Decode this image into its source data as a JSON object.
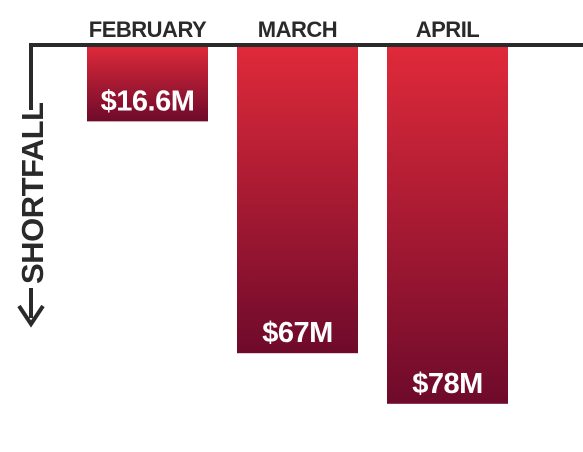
{
  "chart_data": {
    "type": "bar",
    "orientation": "downward",
    "categories": [
      "FEBRUARY",
      "MARCH",
      "APRIL"
    ],
    "values": [
      16.6,
      67,
      78
    ],
    "value_labels": [
      "$16.6M",
      "$67M",
      "$78M"
    ],
    "ylabel": "SHORTFALL",
    "unit": "$M",
    "grid": false,
    "colors": {
      "bar_top": "#e02a3a",
      "bar_bottom": "#6e0a2b",
      "axis": "#2a2a2a"
    }
  }
}
